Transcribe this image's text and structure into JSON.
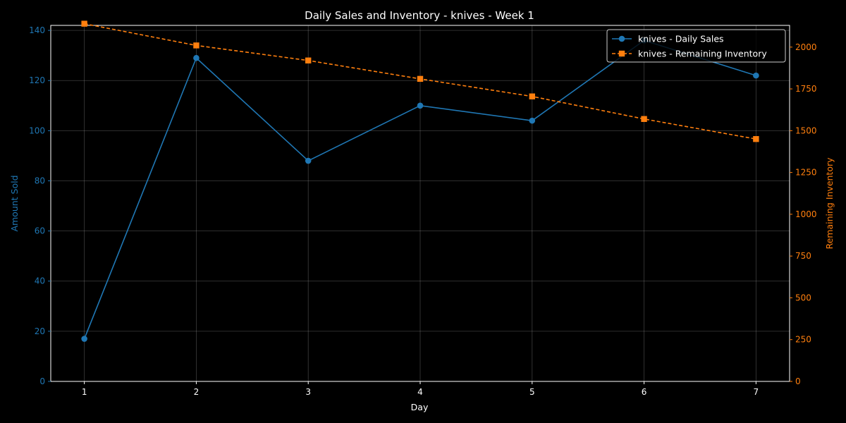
{
  "chart_data": {
    "type": "line",
    "title": "Daily Sales and Inventory - knives - Week 1",
    "xlabel": "Day",
    "x": [
      1,
      2,
      3,
      4,
      5,
      6,
      7
    ],
    "xlim": [
      0.7,
      7.3
    ],
    "grid": true,
    "legend_position": "top-right",
    "background": "#000000",
    "axes": {
      "left": {
        "label": "Amount Sold",
        "ylim": [
          0,
          142
        ],
        "ticks": [
          0,
          20,
          40,
          60,
          80,
          100,
          120,
          140
        ],
        "color": "#1f77b4"
      },
      "right": {
        "label": "Remaining Inventory",
        "ylim": [
          0,
          2130
        ],
        "ticks": [
          0,
          250,
          500,
          750,
          1000,
          1250,
          1500,
          1750,
          2000
        ],
        "color": "#ff7f0e"
      }
    },
    "series": [
      {
        "name": "knives - Daily Sales",
        "axis": "left",
        "values": [
          17,
          129,
          88,
          110,
          104,
          136,
          122
        ],
        "color": "#1f77b4",
        "marker": "circle",
        "linestyle": "solid"
      },
      {
        "name": "knives - Remaining Inventory",
        "axis": "right",
        "values": [
          2140,
          2010,
          1920,
          1810,
          1705,
          1570,
          1450
        ],
        "color": "#ff7f0e",
        "marker": "square",
        "linestyle": "dashed"
      }
    ]
  }
}
